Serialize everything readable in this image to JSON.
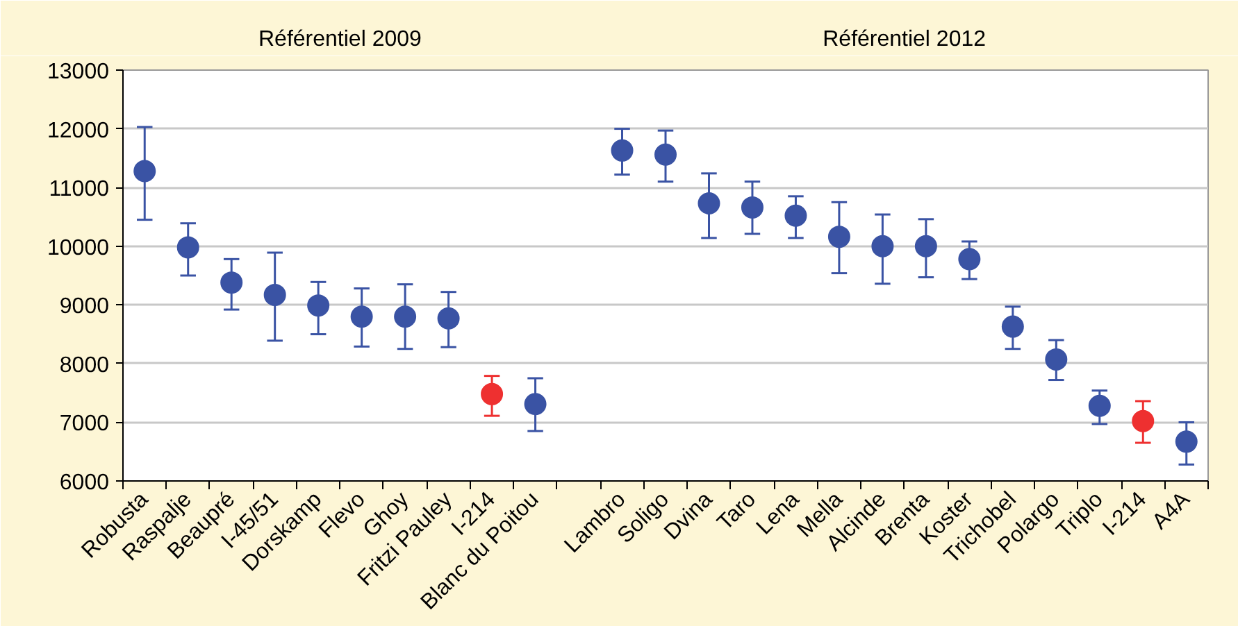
{
  "chart_data": {
    "type": "scatter",
    "annotations": [
      "Référentiel 2009",
      "Référentiel 2012"
    ],
    "categories": [
      "Robusta",
      "Raspalje",
      "Beaupré",
      "I-45/51",
      "Dorskamp",
      "Flevo",
      "Ghoy",
      "Fritzi Pauley",
      "I-214",
      "Blanc du Poitou",
      null,
      "Lambro",
      "Soligo",
      "Dvina",
      "Taro",
      "Lena",
      "Mella",
      "Alcinde",
      "Brenta",
      "Koster",
      "Trichobel",
      "Polargo",
      "Triplo",
      "I-214",
      "A4A"
    ],
    "values": [
      11280,
      9980,
      9380,
      9170,
      8990,
      8800,
      8800,
      8770,
      7480,
      7310,
      null,
      11630,
      11560,
      10730,
      10660,
      10520,
      10160,
      10000,
      10000,
      9780,
      8630,
      8070,
      7280,
      7020,
      6670
    ],
    "errors": [
      [
        10450,
        12030
      ],
      [
        9500,
        10390
      ],
      [
        8920,
        9780
      ],
      [
        8390,
        9890
      ],
      [
        8500,
        9390
      ],
      [
        8290,
        9280
      ],
      [
        8250,
        9350
      ],
      [
        8280,
        9220
      ],
      [
        7110,
        7790
      ],
      [
        6850,
        7750
      ],
      null,
      [
        11220,
        12000
      ],
      [
        11100,
        11970
      ],
      [
        10140,
        11240
      ],
      [
        10210,
        11100
      ],
      [
        10140,
        10850
      ],
      [
        9540,
        10750
      ],
      [
        9360,
        10540
      ],
      [
        9470,
        10460
      ],
      [
        9440,
        10080
      ],
      [
        8250,
        8970
      ],
      [
        7720,
        8400
      ],
      [
        6970,
        7540
      ],
      [
        6650,
        7360
      ],
      [
        6280,
        7000
      ]
    ],
    "colors": [
      "#3a53a4",
      "#3a53a4",
      "#3a53a4",
      "#3a53a4",
      "#3a53a4",
      "#3a53a4",
      "#3a53a4",
      "#3a53a4",
      "#ee3030",
      "#3a53a4",
      "#3a53a4",
      "#3a53a4",
      "#3a53a4",
      "#3a53a4",
      "#3a53a4",
      "#3a53a4",
      "#3a53a4",
      "#3a53a4",
      "#3a53a4",
      "#3a53a4",
      "#3a53a4",
      "#3a53a4",
      "#3a53a4",
      "#ee3030",
      "#3a53a4"
    ],
    "ylim": [
      6000,
      13000
    ],
    "yticks": [
      6000,
      7000,
      8000,
      9000,
      10000,
      11000,
      12000,
      13000
    ],
    "grid": "y",
    "marker": "circle"
  }
}
